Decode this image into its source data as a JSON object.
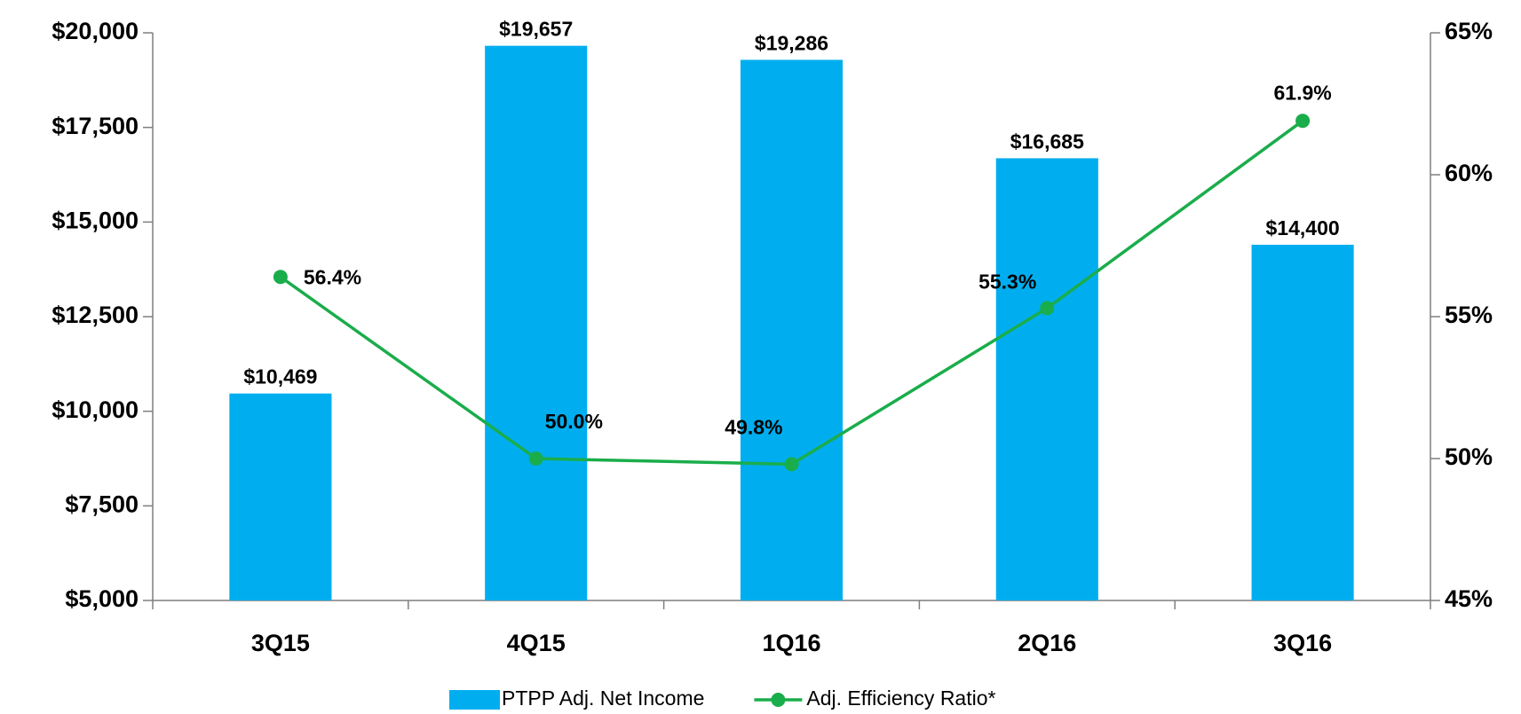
{
  "chart_data": {
    "type": "bar",
    "categories": [
      "3Q15",
      "4Q15",
      "1Q16",
      "2Q16",
      "3Q16"
    ],
    "series": [
      {
        "name": "PTPP Adj. Net Income",
        "type": "bar",
        "color": "#00aeef",
        "values": [
          10469,
          19657,
          19286,
          16685,
          14400
        ],
        "value_labels": [
          "$10,469",
          "$19,657",
          "$19,286",
          "$16,685",
          "$14,400"
        ]
      },
      {
        "name": "Adj. Efficiency Ratio*",
        "type": "line",
        "axis": "y2",
        "color": "#1aad4b",
        "values": [
          56.4,
          50.0,
          49.8,
          55.3,
          61.9
        ],
        "value_labels": [
          "56.4%",
          "50.0%",
          "49.8%",
          "55.3%",
          "61.9%"
        ]
      }
    ],
    "ylim": [
      5000,
      20000
    ],
    "yticks": [
      {
        "value": 5000,
        "label": "$5,000"
      },
      {
        "value": 7500,
        "label": "$7,500"
      },
      {
        "value": 10000,
        "label": "$10,000"
      },
      {
        "value": 12500,
        "label": "$12,500"
      },
      {
        "value": 15000,
        "label": "$15,000"
      },
      {
        "value": 17500,
        "label": "$17,500"
      },
      {
        "value": 20000,
        "label": "$20,000"
      }
    ],
    "y2lim": [
      45,
      65
    ],
    "y2ticks": [
      {
        "value": 45,
        "label": "45%"
      },
      {
        "value": 50,
        "label": "50%"
      },
      {
        "value": 55,
        "label": "55%"
      },
      {
        "value": 60,
        "label": "60%"
      },
      {
        "value": 65,
        "label": "65%"
      }
    ],
    "grid": false,
    "legend": "bottom"
  }
}
